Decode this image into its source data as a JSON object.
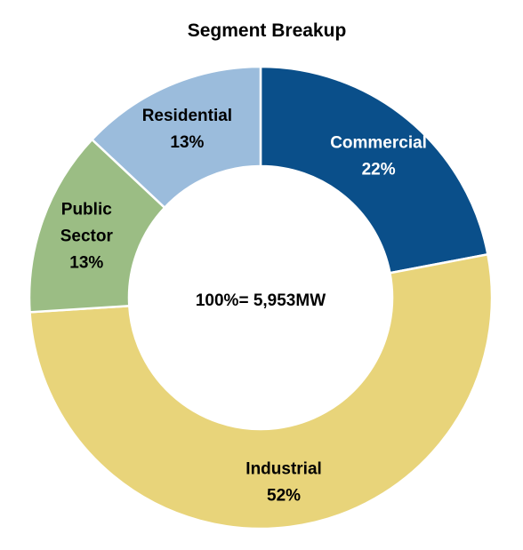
{
  "chart_data": {
    "type": "pie",
    "title": "Segment Breakup",
    "center_label": "100%= 5,953MW",
    "slices": [
      {
        "label": "Commercial",
        "lines": [
          "Commercial"
        ],
        "value": 22,
        "value_label": "22%",
        "color": "#0a4f8a",
        "text_color": "#ffffff"
      },
      {
        "label": "Industrial",
        "lines": [
          "Industrial"
        ],
        "value": 52,
        "value_label": "52%",
        "color": "#e8d47a",
        "text_color": "#000000"
      },
      {
        "label": "Public Sector",
        "lines": [
          "Public",
          "Sector"
        ],
        "value": 13,
        "value_label": "13%",
        "color": "#9bbd84",
        "text_color": "#000000"
      },
      {
        "label": "Residential",
        "lines": [
          "Residential"
        ],
        "value": 13,
        "value_label": "13%",
        "color": "#9bbcdc",
        "text_color": "#000000"
      }
    ]
  }
}
